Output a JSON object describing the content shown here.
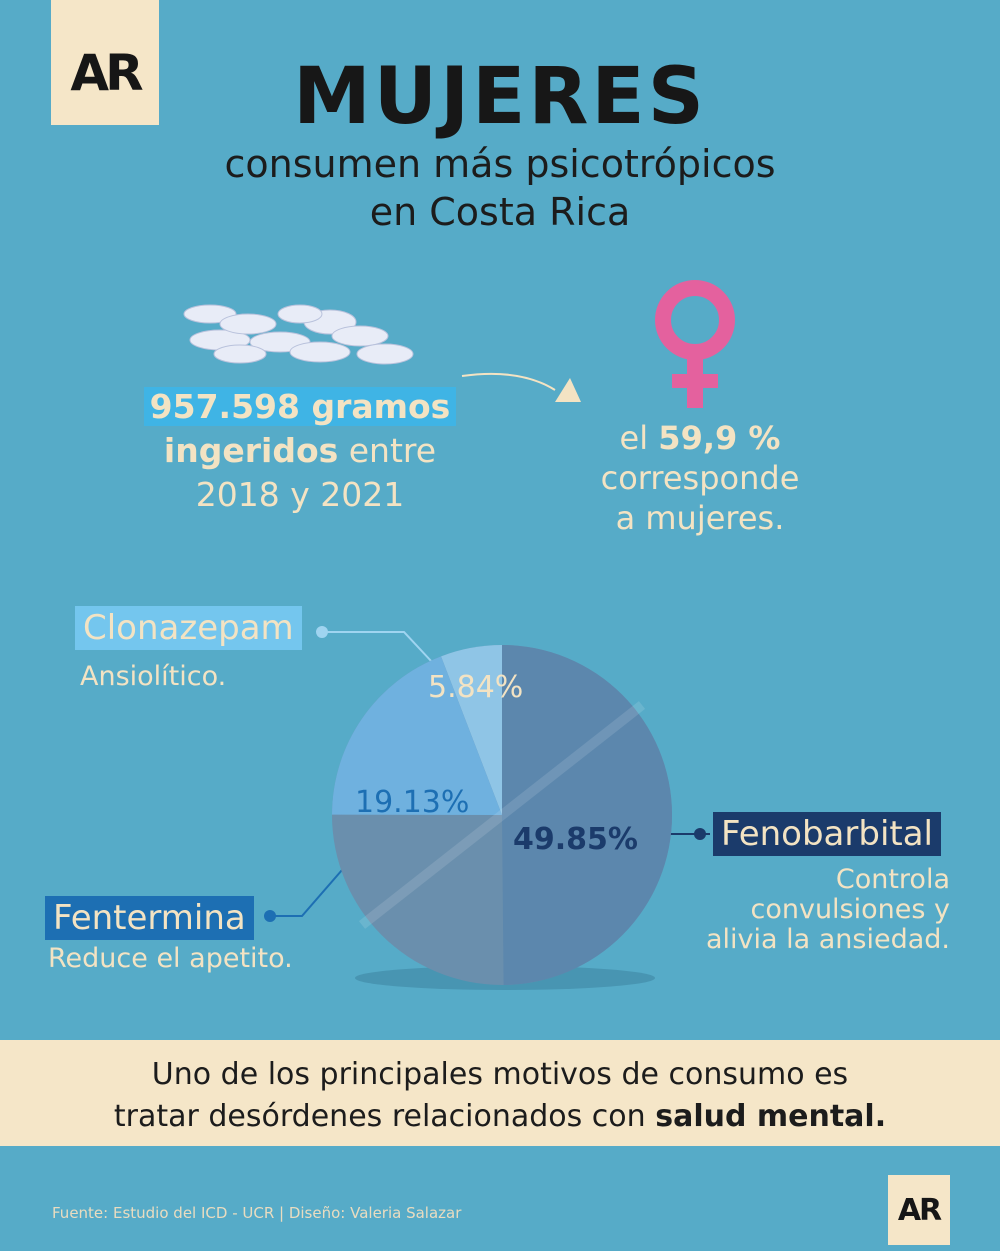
{
  "logo": "AR",
  "title": "MUJERES",
  "subtitle_line1": "consumen más psicotrópicos",
  "subtitle_line2": "en Costa Rica",
  "stat_left": {
    "highlight": "957.598 gramos",
    "bold": "ingeridos",
    "rest": " entre",
    "line3": "2018 y 2021"
  },
  "stat_right": {
    "pre": "el ",
    "bold": "59,9 %",
    "line2": "corresponde",
    "line3": "a mujeres."
  },
  "chart_data": {
    "type": "pie",
    "slices": [
      {
        "label": "Fenobarbital",
        "value": 49.85,
        "label_text": "49.85%",
        "color": "#5c87ad"
      },
      {
        "label": "Fentermina",
        "value": 19.13,
        "label_text": "19.13%",
        "color": "#6fb1df"
      },
      {
        "label": "Clonazepam",
        "value": 5.84,
        "label_text": "5.84%",
        "color": "#8fc5e6"
      }
    ],
    "remainder_color": "#6a8fad"
  },
  "drugs": {
    "clonazepam": {
      "name": "Clonazepam",
      "desc": "Ansiolítico.",
      "color": "#74c6ee"
    },
    "fentermina": {
      "name": "Fentermina",
      "desc": "Reduce el apetito.",
      "color": "#1d6fb3"
    },
    "fenobarbital": {
      "name": "Fenobarbital",
      "desc_line1": "Controla",
      "desc_line2": "convulsiones y",
      "desc_line3": "alivia la ansiedad.",
      "color": "#1b3b6b"
    }
  },
  "bottom": {
    "line1": "Uno de los principales motivos de consumo es",
    "line2_pre": "tratar desórdenes relacionados con ",
    "line2_bold": "salud mental."
  },
  "footer": "Fuente: Estudio del ICD - UCR | Diseño: Valeria Salazar"
}
